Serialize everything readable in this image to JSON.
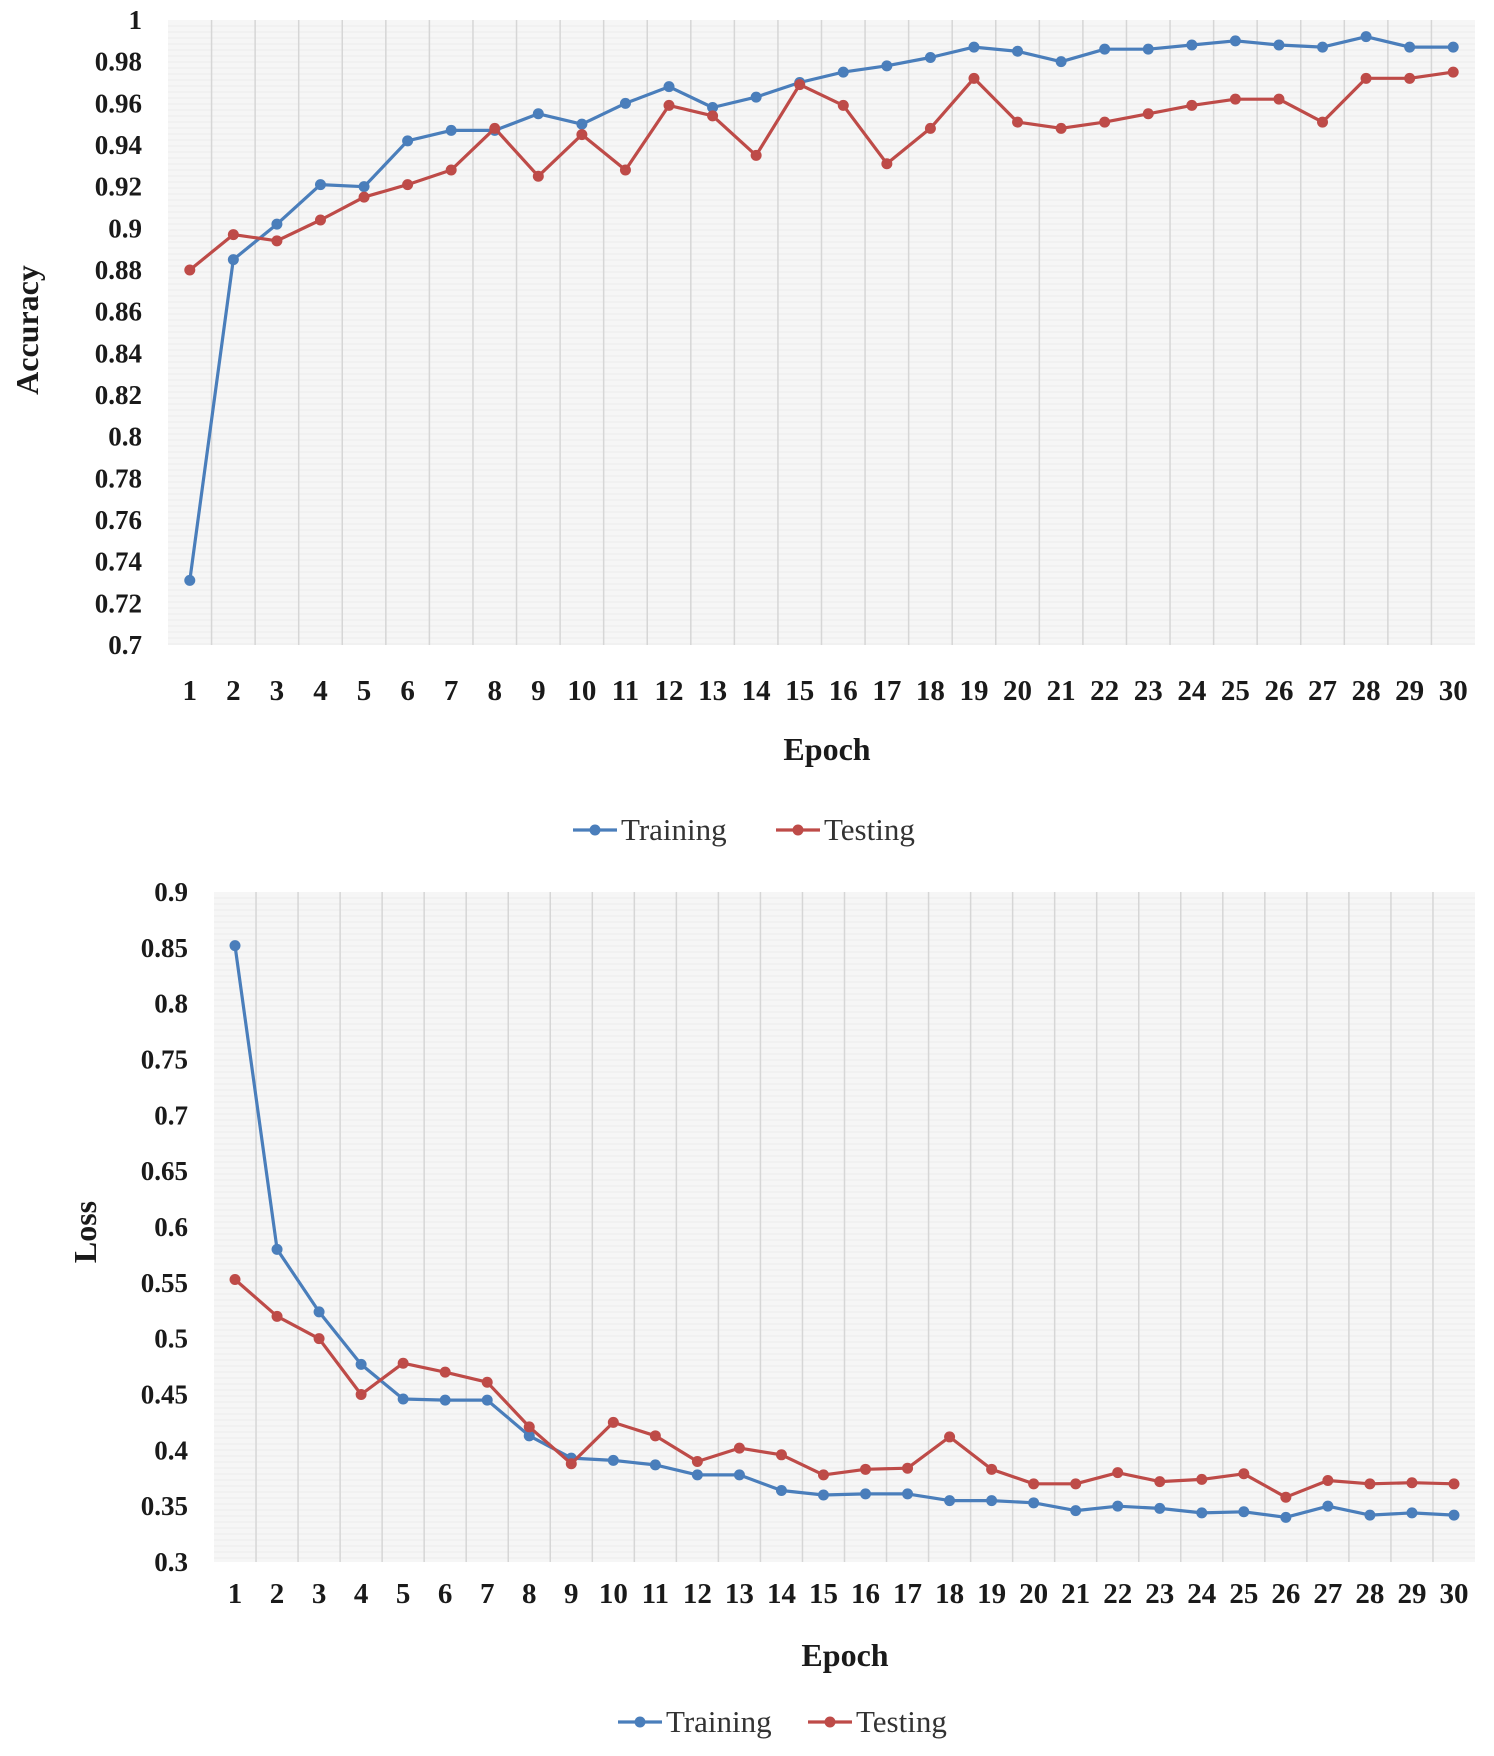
{
  "chart_data": [
    {
      "type": "line",
      "title": "",
      "xlabel": "Epoch",
      "ylabel": "Accuracy",
      "ylim": [
        0.7,
        1.0
      ],
      "ytick_step": 0.02,
      "yticks": [
        "0.7",
        "0.72",
        "0.74",
        "0.76",
        "0.78",
        "0.8",
        "0.82",
        "0.84",
        "0.86",
        "0.88",
        "0.9",
        "0.92",
        "0.94",
        "0.96",
        "0.98",
        "1"
      ],
      "categories": [
        "1",
        "2",
        "3",
        "4",
        "5",
        "6",
        "7",
        "8",
        "9",
        "10",
        "11",
        "12",
        "13",
        "14",
        "15",
        "16",
        "17",
        "18",
        "19",
        "20",
        "21",
        "22",
        "23",
        "24",
        "25",
        "26",
        "27",
        "28",
        "29",
        "30"
      ],
      "grid": "vertical",
      "legend_position": "bottom",
      "series": [
        {
          "name": "Training",
          "color": "#4a7ebb",
          "values": [
            0.731,
            0.885,
            0.902,
            0.921,
            0.92,
            0.942,
            0.947,
            0.947,
            0.955,
            0.95,
            0.96,
            0.968,
            0.958,
            0.963,
            0.97,
            0.975,
            0.978,
            0.982,
            0.987,
            0.985,
            0.98,
            0.986,
            0.986,
            0.988,
            0.99,
            0.988,
            0.987,
            0.992,
            0.987,
            0.987
          ]
        },
        {
          "name": "Testing",
          "color": "#be4b48",
          "values": [
            0.88,
            0.897,
            0.894,
            0.904,
            0.915,
            0.921,
            0.928,
            0.948,
            0.925,
            0.945,
            0.928,
            0.959,
            0.954,
            0.935,
            0.969,
            0.959,
            0.931,
            0.948,
            0.972,
            0.951,
            0.948,
            0.951,
            0.955,
            0.959,
            0.962,
            0.962,
            0.951,
            0.972,
            0.972,
            0.975
          ]
        }
      ]
    },
    {
      "type": "line",
      "title": "",
      "xlabel": "Epoch",
      "ylabel": "Loss",
      "ylim": [
        0.3,
        0.9
      ],
      "ytick_step": 0.05,
      "yticks": [
        "0.3",
        "0.35",
        "0.4",
        "0.45",
        "0.5",
        "0.55",
        "0.6",
        "0.65",
        "0.7",
        "0.75",
        "0.8",
        "0.85",
        "0.9"
      ],
      "categories": [
        "1",
        "2",
        "3",
        "4",
        "5",
        "6",
        "7",
        "8",
        "9",
        "10",
        "11",
        "12",
        "13",
        "14",
        "15",
        "16",
        "17",
        "18",
        "19",
        "20",
        "21",
        "22",
        "23",
        "24",
        "25",
        "26",
        "27",
        "28",
        "29",
        "30"
      ],
      "grid": "vertical",
      "legend_position": "bottom",
      "series": [
        {
          "name": "Training",
          "color": "#4a7ebb",
          "values": [
            0.852,
            0.58,
            0.524,
            0.477,
            0.446,
            0.445,
            0.445,
            0.413,
            0.393,
            0.391,
            0.387,
            0.378,
            0.378,
            0.364,
            0.36,
            0.361,
            0.361,
            0.355,
            0.355,
            0.353,
            0.346,
            0.35,
            0.348,
            0.344,
            0.345,
            0.34,
            0.35,
            0.342,
            0.344,
            0.342
          ]
        },
        {
          "name": "Testing",
          "color": "#be4b48",
          "values": [
            0.553,
            0.52,
            0.5,
            0.45,
            0.478,
            0.47,
            0.461,
            0.421,
            0.388,
            0.425,
            0.413,
            0.39,
            0.402,
            0.396,
            0.378,
            0.383,
            0.384,
            0.412,
            0.383,
            0.37,
            0.37,
            0.38,
            0.372,
            0.374,
            0.379,
            0.358,
            0.373,
            0.37,
            0.371,
            0.37
          ]
        }
      ]
    }
  ]
}
